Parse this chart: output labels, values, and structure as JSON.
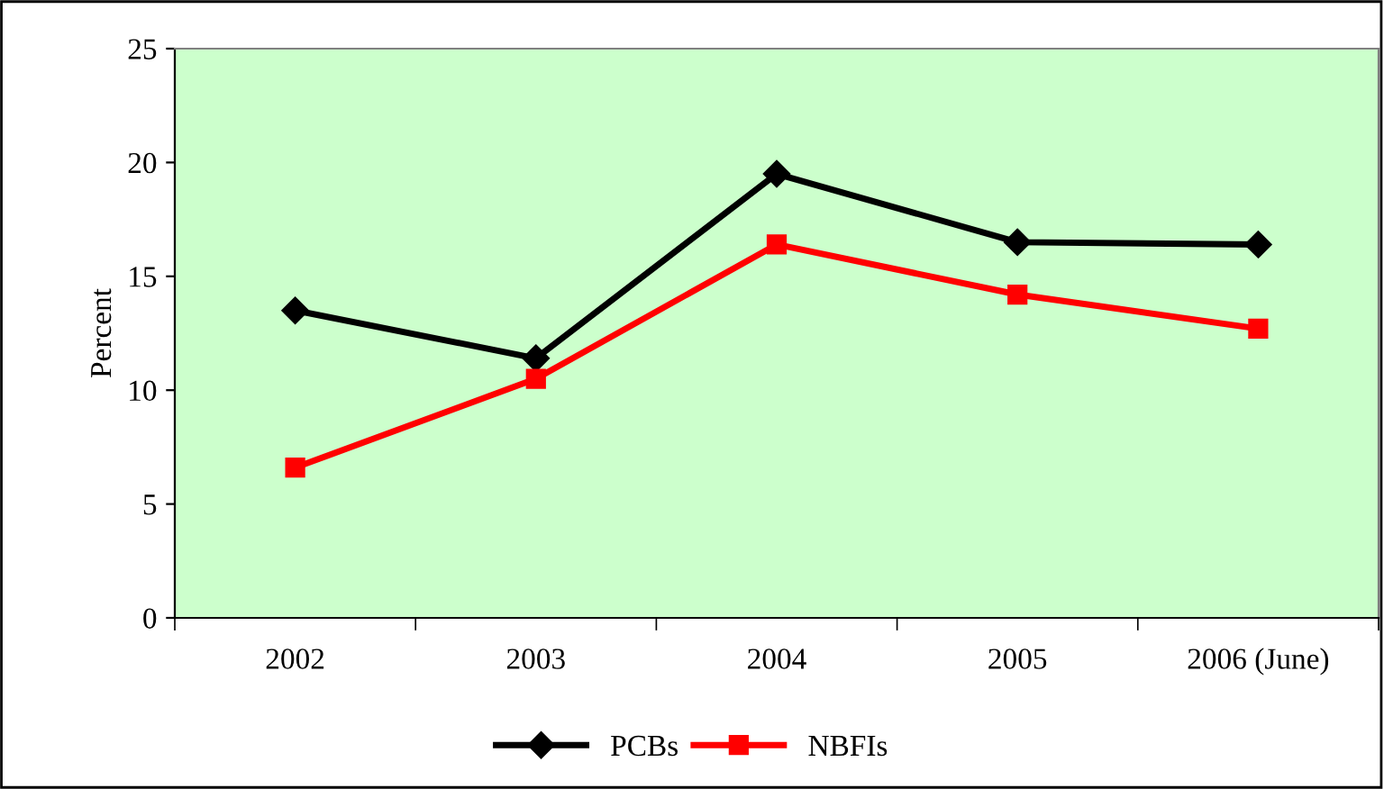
{
  "chart_data": {
    "type": "line",
    "ylabel": "Percent",
    "categories": [
      "2002",
      "2003",
      "2004",
      "2005",
      "2006 (June)"
    ],
    "series": [
      {
        "name": "PCBs",
        "color": "#000000",
        "marker": "diamond",
        "values": [
          13.5,
          11.4,
          19.5,
          16.5,
          16.4
        ]
      },
      {
        "name": "NBFIs",
        "color": "#ff0000",
        "marker": "square",
        "values": [
          6.6,
          10.5,
          16.4,
          14.2,
          12.7
        ]
      }
    ],
    "ylim": [
      0,
      25
    ],
    "yticks": [
      0,
      5,
      10,
      15,
      20,
      25
    ],
    "grid": false,
    "legend": "bottom"
  }
}
